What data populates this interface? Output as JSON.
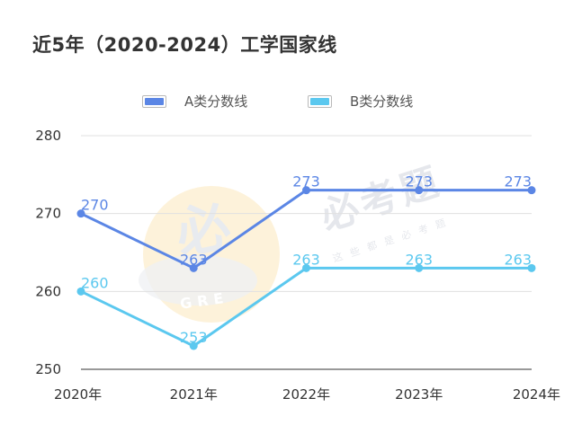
{
  "page": {
    "title": "近5年（2020-2024）工学国家线"
  },
  "colors": {
    "A": "#5b86e5",
    "B": "#5bc8ef",
    "grid": "#e0e0e0",
    "axis": "#333333"
  },
  "watermark": {
    "badge": "必",
    "badge_sub": "GRE",
    "brand": "必考题",
    "tagline": "这些都是必考题"
  },
  "chart_data": {
    "type": "line",
    "title": "近5年（2020-2024）工学国家线",
    "categories": [
      "2020年",
      "2021年",
      "2022年",
      "2023年",
      "2024年"
    ],
    "yticks": [
      250,
      260,
      270,
      280
    ],
    "ylim": [
      250,
      280
    ],
    "grid": true,
    "legend_position": "top-center",
    "series": [
      {
        "name": "A类分数线",
        "color": "#5b86e5",
        "values": [
          270,
          263,
          273,
          273,
          273
        ]
      },
      {
        "name": "B类分数线",
        "color": "#5bc8ef",
        "values": [
          260,
          253,
          263,
          263,
          263
        ]
      }
    ]
  }
}
